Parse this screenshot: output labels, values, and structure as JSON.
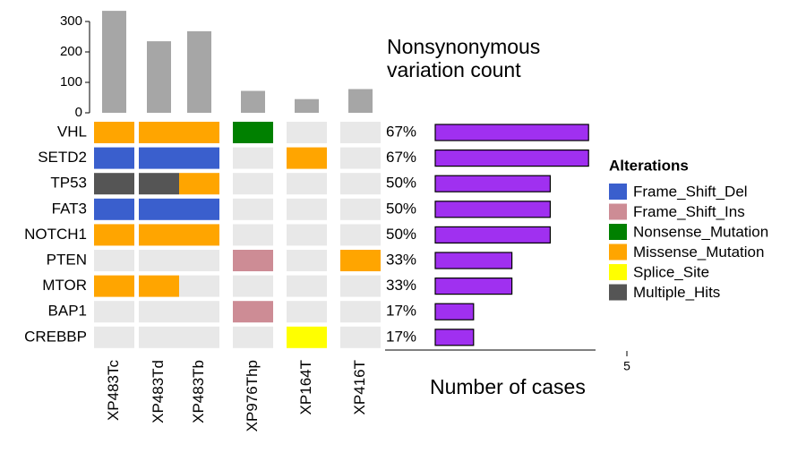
{
  "chart_data": {
    "type": "oncoprint",
    "samples": [
      "XP483Tc",
      "XP483Td",
      "XP483Tb",
      "XP976Thp",
      "XP164T",
      "XP416T"
    ],
    "genes": [
      "VHL",
      "SETD2",
      "TP53",
      "FAT3",
      "NOTCH1",
      "PTEN",
      "MTOR",
      "BAP1",
      "CREBBP"
    ],
    "top_bar": {
      "title_lines": [
        "Nonsynonymous",
        "variation count"
      ],
      "values": [
        335,
        235,
        268,
        72,
        45,
        78
      ],
      "color": "#a6a6a6",
      "ylim": [
        0,
        350
      ],
      "yticks": [
        0,
        100,
        200,
        300
      ]
    },
    "alterations": [
      [
        "Missense_Mutation",
        "Missense_Mutation",
        "Missense_Mutation",
        "Nonsense_Mutation",
        null,
        null
      ],
      [
        "Frame_Shift_Del",
        "Frame_Shift_Del",
        "Frame_Shift_Del",
        null,
        "Missense_Mutation",
        null
      ],
      [
        "Multiple_Hits",
        "Multiple_Hits",
        "Missense_Mutation",
        null,
        null,
        null
      ],
      [
        "Frame_Shift_Del",
        "Frame_Shift_Del",
        "Frame_Shift_Del",
        null,
        null,
        null
      ],
      [
        "Missense_Mutation",
        "Missense_Mutation",
        "Missense_Mutation",
        null,
        null,
        null
      ],
      [
        null,
        null,
        null,
        "Frame_Shift_Ins",
        null,
        "Missense_Mutation"
      ],
      [
        "Missense_Mutation",
        "Missense_Mutation",
        null,
        null,
        null,
        null
      ],
      [
        null,
        null,
        null,
        "Frame_Shift_Ins",
        null,
        null
      ],
      [
        null,
        null,
        null,
        null,
        "Splice_Site",
        null
      ]
    ],
    "empty_color": "#e8e8e8",
    "percent": {
      "values": [
        67,
        67,
        50,
        50,
        50,
        33,
        33,
        17,
        17
      ],
      "value_labels": [
        "67%",
        "67%",
        "50%",
        "50%",
        "50%",
        "33%",
        "33%",
        "17%",
        "17%"
      ]
    },
    "cases": {
      "values": [
        4,
        4,
        3,
        3,
        3,
        2,
        2,
        1,
        1
      ],
      "xlim": [
        0,
        5
      ],
      "xticks": [
        5
      ],
      "xlabel": "Number of cases",
      "color": "#a030f0"
    },
    "legend": {
      "title": "Alterations",
      "items": [
        {
          "name": "Frame_Shift_Del",
          "color": "#3a5fcd"
        },
        {
          "name": "Frame_Shift_Ins",
          "color": "#cd8c95"
        },
        {
          "name": "Nonsense_Mutation",
          "color": "#008000"
        },
        {
          "name": "Missense_Mutation",
          "color": "#ffa500"
        },
        {
          "name": "Splice_Site",
          "color": "#ffff00"
        },
        {
          "name": "Multiple_Hits",
          "color": "#555555"
        }
      ]
    }
  }
}
